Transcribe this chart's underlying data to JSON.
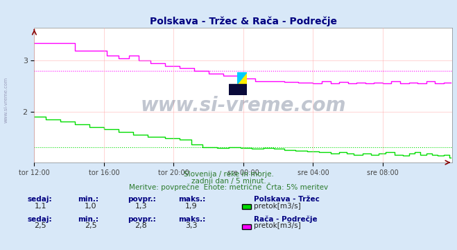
{
  "title": "Polskava - Tržec & Rača - Podrečje",
  "title_color": "#000080",
  "bg_color": "#d8e8f8",
  "plot_bg_color": "#ffffff",
  "grid_color": "#ffaaaa",
  "xlabel_ticks": [
    "tor 12:00",
    "tor 16:00",
    "tor 20:00",
    "sre 00:00",
    "sre 04:00",
    "sre 08:00"
  ],
  "ylabel_ticks": [
    2,
    3
  ],
  "ylim": [
    1.0,
    3.65
  ],
  "xlim": [
    0,
    288
  ],
  "tick_positions": [
    0,
    48,
    96,
    144,
    192,
    240
  ],
  "line1_color": "#00dd00",
  "line2_color": "#ff00ff",
  "avg1_color": "#00dd00",
  "avg2_color": "#ff00ff",
  "avg1_value": 1.3,
  "avg2_value": 2.8,
  "watermark": "www.si-vreme.com",
  "watermark_color": "#1a3a6a",
  "side_text": "www.si-vreme.com",
  "subtitle1": "Slovenija / reke in morje.",
  "subtitle2": "zadnji dan / 5 minut.",
  "subtitle3": "Meritve: povprečne  Enote: metrične  Črta: 5% meritev",
  "subtitle_color": "#2a7a2a",
  "label_color": "#000080",
  "legend1_label": "Polskava - Tržec",
  "legend2_label": "Rača - Podrečje",
  "unit_label": "pretok[m3/s]",
  "sedaj1": "1,1",
  "min1": "1,0",
  "povpr1": "1,3",
  "maks1": "1,9",
  "sedaj2": "2,5",
  "min2": "2,5",
  "povpr2": "2,8",
  "maks2": "3,3",
  "n_points": 288,
  "arrow_color": "#880000"
}
